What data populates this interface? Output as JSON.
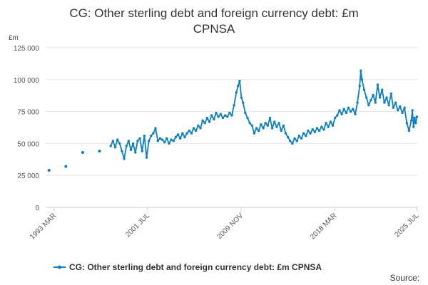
{
  "chart_data": {
    "type": "line",
    "title_lines": [
      "CG: Other sterling debt and foreign currency debt: £m",
      "CPNSA"
    ],
    "unit_label": "£m",
    "ylim": [
      0,
      125000
    ],
    "y_ticks": [
      0,
      25000,
      50000,
      75000,
      100000,
      125000
    ],
    "y_tick_labels": [
      "0",
      "25 000",
      "50 000",
      "75 000",
      "100 000",
      "125 000"
    ],
    "x_ticks": [
      1993.17,
      2001.5,
      2009.83,
      2018.17,
      2025.5
    ],
    "x_tick_labels": [
      "1993 MAR",
      "2001 JUL",
      "2009 NOV",
      "2018 MAR",
      "2025 JUL"
    ],
    "series": [
      {
        "name": "CG: Other sterling debt and foreign currency debt: £m CPNSA",
        "color": "#0f7fbf",
        "early_points": [
          [
            1992.7,
            29000
          ],
          [
            1994.2,
            32000
          ],
          [
            1995.7,
            43000
          ],
          [
            1997.2,
            44000
          ]
        ],
        "points": [
          [
            1998.2,
            48000
          ],
          [
            1998.4,
            52000
          ],
          [
            1998.6,
            47000
          ],
          [
            1998.8,
            53000
          ],
          [
            1999.0,
            50000
          ],
          [
            1999.2,
            44000
          ],
          [
            1999.4,
            38000
          ],
          [
            1999.6,
            48000
          ],
          [
            1999.8,
            52000
          ],
          [
            2000.0,
            45000
          ],
          [
            2000.2,
            50000
          ],
          [
            2000.4,
            43000
          ],
          [
            2000.6,
            52000
          ],
          [
            2000.8,
            54000
          ],
          [
            2001.0,
            44000
          ],
          [
            2001.2,
            56000
          ],
          [
            2001.4,
            39000
          ],
          [
            2001.6,
            52000
          ],
          [
            2001.8,
            56000
          ],
          [
            2002.0,
            58000
          ],
          [
            2002.2,
            62000
          ],
          [
            2002.4,
            52000
          ],
          [
            2002.6,
            54000
          ],
          [
            2002.8,
            53000
          ],
          [
            2003.0,
            51000
          ],
          [
            2003.2,
            54000
          ],
          [
            2003.4,
            50000
          ],
          [
            2003.6,
            53000
          ],
          [
            2003.8,
            52000
          ],
          [
            2004.0,
            55000
          ],
          [
            2004.2,
            57000
          ],
          [
            2004.4,
            54000
          ],
          [
            2004.6,
            58000
          ],
          [
            2004.8,
            55000
          ],
          [
            2005.0,
            58000
          ],
          [
            2005.2,
            60000
          ],
          [
            2005.4,
            58000
          ],
          [
            2005.6,
            62000
          ],
          [
            2005.8,
            60000
          ],
          [
            2006.0,
            64000
          ],
          [
            2006.2,
            62000
          ],
          [
            2006.4,
            68000
          ],
          [
            2006.6,
            66000
          ],
          [
            2006.8,
            70000
          ],
          [
            2007.0,
            67000
          ],
          [
            2007.2,
            72000
          ],
          [
            2007.4,
            69000
          ],
          [
            2007.6,
            74000
          ],
          [
            2007.8,
            71000
          ],
          [
            2008.0,
            73000
          ],
          [
            2008.2,
            70000
          ],
          [
            2008.4,
            72000
          ],
          [
            2008.6,
            71000
          ],
          [
            2008.8,
            74000
          ],
          [
            2009.0,
            72000
          ],
          [
            2009.2,
            80000
          ],
          [
            2009.4,
            90000
          ],
          [
            2009.55,
            95000
          ],
          [
            2009.7,
            99000
          ],
          [
            2009.85,
            86000
          ],
          [
            2010.0,
            82000
          ],
          [
            2010.2,
            74000
          ],
          [
            2010.4,
            70000
          ],
          [
            2010.6,
            66000
          ],
          [
            2010.8,
            64000
          ],
          [
            2011.0,
            58000
          ],
          [
            2011.2,
            62000
          ],
          [
            2011.4,
            60000
          ],
          [
            2011.6,
            65000
          ],
          [
            2011.8,
            62000
          ],
          [
            2012.0,
            66000
          ],
          [
            2012.2,
            64000
          ],
          [
            2012.4,
            70000
          ],
          [
            2012.6,
            62000
          ],
          [
            2012.8,
            67000
          ],
          [
            2013.0,
            63000
          ],
          [
            2013.2,
            66000
          ],
          [
            2013.4,
            60000
          ],
          [
            2013.6,
            64000
          ],
          [
            2013.8,
            58000
          ],
          [
            2014.0,
            55000
          ],
          [
            2014.2,
            52000
          ],
          [
            2014.4,
            50000
          ],
          [
            2014.6,
            54000
          ],
          [
            2014.8,
            52000
          ],
          [
            2015.0,
            56000
          ],
          [
            2015.2,
            54000
          ],
          [
            2015.4,
            58000
          ],
          [
            2015.6,
            56000
          ],
          [
            2015.8,
            60000
          ],
          [
            2016.0,
            58000
          ],
          [
            2016.2,
            61000
          ],
          [
            2016.4,
            59000
          ],
          [
            2016.6,
            62000
          ],
          [
            2016.8,
            60000
          ],
          [
            2017.0,
            63000
          ],
          [
            2017.2,
            61000
          ],
          [
            2017.4,
            66000
          ],
          [
            2017.6,
            63000
          ],
          [
            2017.8,
            67000
          ],
          [
            2018.0,
            64000
          ],
          [
            2018.2,
            70000
          ],
          [
            2018.4,
            72000
          ],
          [
            2018.6,
            76000
          ],
          [
            2018.8,
            73000
          ],
          [
            2019.0,
            77000
          ],
          [
            2019.2,
            74000
          ],
          [
            2019.4,
            78000
          ],
          [
            2019.6,
            75000
          ],
          [
            2019.8,
            77000
          ],
          [
            2020.0,
            73000
          ],
          [
            2020.2,
            82000
          ],
          [
            2020.4,
            95000
          ],
          [
            2020.5,
            107000
          ],
          [
            2020.6,
            100000
          ],
          [
            2020.8,
            92000
          ],
          [
            2021.0,
            86000
          ],
          [
            2021.2,
            80000
          ],
          [
            2021.4,
            84000
          ],
          [
            2021.6,
            88000
          ],
          [
            2021.8,
            82000
          ],
          [
            2022.0,
            96000
          ],
          [
            2022.2,
            86000
          ],
          [
            2022.4,
            92000
          ],
          [
            2022.6,
            82000
          ],
          [
            2022.8,
            86000
          ],
          [
            2023.0,
            80000
          ],
          [
            2023.2,
            89000
          ],
          [
            2023.4,
            78000
          ],
          [
            2023.6,
            82000
          ],
          [
            2023.8,
            76000
          ],
          [
            2024.0,
            79000
          ],
          [
            2024.2,
            74000
          ],
          [
            2024.4,
            78000
          ],
          [
            2024.6,
            66000
          ],
          [
            2024.8,
            60000
          ],
          [
            2025.0,
            68000
          ],
          [
            2025.1,
            76000
          ],
          [
            2025.2,
            63000
          ],
          [
            2025.3,
            70000
          ],
          [
            2025.4,
            66000
          ],
          [
            2025.5,
            71000
          ]
        ]
      }
    ],
    "legend_position": "bottom",
    "grid": "horizontal"
  },
  "legend_label": "CG: Other sterling debt and foreign currency debt: £m CPNSA",
  "source_label": "Source:"
}
